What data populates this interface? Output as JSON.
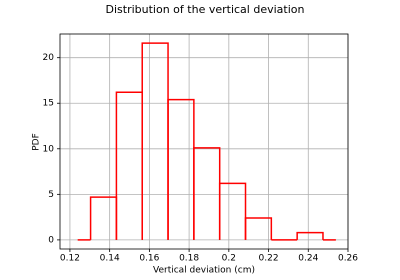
{
  "chart_data": {
    "type": "histogram",
    "title": "Distribution of the vertical deviation",
    "x_label": "Vertical deviation (cm)",
    "y_label": "PDF",
    "bins": [
      0.1239,
      0.1304,
      0.1434,
      0.1564,
      0.1694,
      0.1824,
      0.1954,
      0.2084,
      0.2214,
      0.2344,
      0.2474,
      0.2539
    ],
    "values": [
      0,
      4.7,
      16.2,
      21.6,
      15.4,
      10.1,
      6.2,
      2.4,
      0,
      0.8,
      0
    ],
    "color": "#ff0000",
    "xlim": [
      0.115,
      0.26
    ],
    "ylim": [
      -1.0,
      22.6
    ],
    "xticks": [
      0.12,
      0.14,
      0.16,
      0.18,
      0.2,
      0.22,
      0.24,
      0.26
    ],
    "yticks": [
      0,
      5,
      10,
      15,
      20
    ],
    "grid": true
  }
}
